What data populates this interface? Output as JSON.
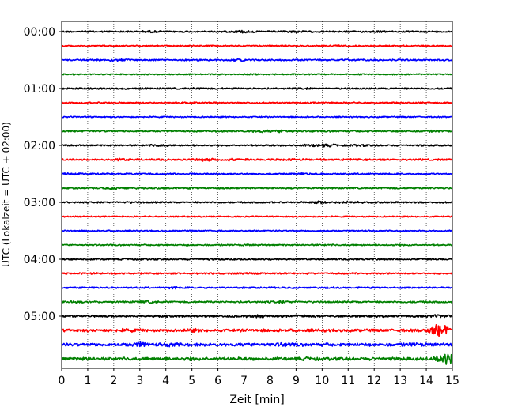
{
  "chart_data": {
    "type": "line",
    "title": "",
    "xlabel": "Zeit  [min]",
    "ylabel": "UTC (Lokalzeit = UTC + 02:00)",
    "xlim": [
      0,
      15
    ],
    "x_ticks": [
      "0",
      "1",
      "2",
      "3",
      "4",
      "5",
      "6",
      "7",
      "8",
      "9",
      "10",
      "11",
      "12",
      "13",
      "14",
      "15"
    ],
    "y_ticks": [
      "00:00",
      "01:00",
      "02:00",
      "03:00",
      "04:00",
      "05:00"
    ],
    "grid": "vertical-dotted",
    "colors": [
      "#000000",
      "#ff0000",
      "#0000ff",
      "#008000"
    ],
    "traces": [
      {
        "label": "00:00",
        "color": "#000000",
        "amp": 1.0,
        "bursts": [
          [
            3.4,
            1.4
          ],
          [
            7.0,
            2.0
          ],
          [
            8.9,
            1.6
          ],
          [
            12.0,
            1.3
          ]
        ]
      },
      {
        "label": "00:15",
        "color": "#ff0000",
        "amp": 0.8,
        "bursts": [
          [
            10.6,
            1.5
          ],
          [
            13.0,
            1.2
          ]
        ]
      },
      {
        "label": "00:30",
        "color": "#0000ff",
        "amp": 1.0,
        "bursts": [
          [
            1.3,
            1.3
          ],
          [
            2.0,
            1.8
          ],
          [
            6.8,
            1.6
          ],
          [
            11.0,
            1.2
          ]
        ]
      },
      {
        "label": "00:45",
        "color": "#008000",
        "amp": 0.8,
        "bursts": [
          [
            8.0,
            1.2
          ]
        ]
      },
      {
        "label": "01:00",
        "color": "#000000",
        "amp": 1.0,
        "bursts": [
          [
            1.0,
            1.3
          ],
          [
            5.2,
            1.2
          ],
          [
            9.3,
            1.3
          ]
        ]
      },
      {
        "label": "01:15",
        "color": "#ff0000",
        "amp": 0.9,
        "bursts": [
          [
            1.5,
            1.2
          ],
          [
            4.6,
            1.3
          ]
        ]
      },
      {
        "label": "01:30",
        "color": "#0000ff",
        "amp": 0.8,
        "bursts": []
      },
      {
        "label": "01:45",
        "color": "#008000",
        "amp": 1.0,
        "bursts": [
          [
            7.6,
            1.8
          ],
          [
            8.5,
            2.2
          ],
          [
            14.3,
            1.6
          ]
        ]
      },
      {
        "label": "02:00",
        "color": "#000000",
        "amp": 1.0,
        "bursts": [
          [
            3.7,
            1.5
          ],
          [
            9.7,
            1.8
          ],
          [
            10.3,
            2.0
          ],
          [
            11.4,
            1.6
          ]
        ]
      },
      {
        "label": "02:15",
        "color": "#ff0000",
        "amp": 1.1,
        "bursts": [
          [
            2.4,
            1.5
          ],
          [
            5.5,
            2.0
          ],
          [
            6.5,
            1.8
          ],
          [
            8.8,
            1.4
          ]
        ]
      },
      {
        "label": "02:30",
        "color": "#0000ff",
        "amp": 1.0,
        "bursts": [
          [
            0.4,
            1.5
          ],
          [
            9.5,
            1.6
          ]
        ]
      },
      {
        "label": "02:45",
        "color": "#008000",
        "amp": 1.0,
        "bursts": [
          [
            2.0,
            1.6
          ],
          [
            4.1,
            1.5
          ],
          [
            14.0,
            1.2
          ]
        ]
      },
      {
        "label": "03:00",
        "color": "#000000",
        "amp": 1.0,
        "bursts": [
          [
            2.6,
            1.3
          ],
          [
            9.9,
            2.0
          ],
          [
            11.0,
            1.7
          ]
        ]
      },
      {
        "label": "03:15",
        "color": "#ff0000",
        "amp": 0.8,
        "bursts": []
      },
      {
        "label": "03:30",
        "color": "#0000ff",
        "amp": 0.8,
        "bursts": []
      },
      {
        "label": "03:45",
        "color": "#008000",
        "amp": 0.9,
        "bursts": [
          [
            7.0,
            1.2
          ],
          [
            10.0,
            1.2
          ],
          [
            13.0,
            1.2
          ]
        ]
      },
      {
        "label": "04:00",
        "color": "#000000",
        "amp": 1.0,
        "bursts": [
          [
            1.1,
            1.2
          ],
          [
            6.2,
            1.2
          ]
        ]
      },
      {
        "label": "04:15",
        "color": "#ff0000",
        "amp": 1.0,
        "bursts": [
          [
            1.0,
            1.3
          ],
          [
            7.3,
            1.3
          ],
          [
            11.5,
            1.2
          ]
        ]
      },
      {
        "label": "04:30",
        "color": "#0000ff",
        "amp": 1.0,
        "bursts": [
          [
            4.3,
            1.5
          ],
          [
            10.4,
            1.2
          ]
        ]
      },
      {
        "label": "04:45",
        "color": "#008000",
        "amp": 1.1,
        "bursts": [
          [
            0.5,
            1.4
          ],
          [
            3.3,
            1.6
          ],
          [
            8.5,
            1.7
          ]
        ]
      },
      {
        "label": "05:00",
        "color": "#000000",
        "amp": 1.3,
        "bursts": [
          [
            7.5,
            1.6
          ],
          [
            9.2,
            1.4
          ],
          [
            14.5,
            1.5
          ]
        ]
      },
      {
        "label": "05:15",
        "color": "#ff0000",
        "amp": 1.8,
        "bursts": [
          [
            2.5,
            1.4
          ],
          [
            5.0,
            1.3
          ],
          [
            14.5,
            4.5
          ]
        ]
      },
      {
        "label": "05:30",
        "color": "#0000ff",
        "amp": 2.0,
        "bursts": [
          [
            3.0,
            1.8
          ],
          [
            4.3,
            1.4
          ],
          [
            8.5,
            1.4
          ],
          [
            13.5,
            1.3
          ]
        ]
      },
      {
        "label": "05:45",
        "color": "#008000",
        "amp": 2.0,
        "bursts": [
          [
            1.0,
            1.2
          ],
          [
            5.0,
            1.2
          ],
          [
            9.5,
            1.2
          ],
          [
            14.8,
            4.0
          ]
        ]
      }
    ]
  }
}
